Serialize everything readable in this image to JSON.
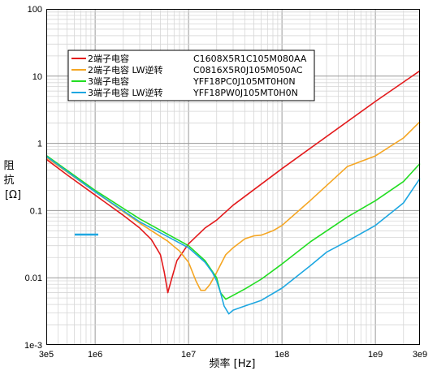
{
  "chart_data": {
    "type": "line",
    "xscale": "log",
    "yscale": "log",
    "xlim": [
      300000,
      3000000000
    ],
    "ylim": [
      0.001,
      100
    ],
    "xlabel": "频率 [Hz]",
    "ylabel": [
      "阻",
      "抗",
      "[Ω]"
    ],
    "x_tick_labels": [
      "3e5",
      "1e6",
      "1e7",
      "1e8",
      "1e9",
      "3e9"
    ],
    "y_tick_labels": [
      "1e-3",
      "0.01",
      "0.1",
      "1",
      "10",
      "100"
    ],
    "grid": true,
    "legend_placement": "upper-left",
    "series": [
      {
        "name": "2端子电容",
        "part": "C1608X5R1C105M080AA",
        "color": "#e31a1c",
        "points": [
          [
            300000,
            0.58
          ],
          [
            500000,
            0.34
          ],
          [
            1000000,
            0.17
          ],
          [
            2000000,
            0.085
          ],
          [
            3000000,
            0.055
          ],
          [
            4000000,
            0.037
          ],
          [
            5000000,
            0.022
          ],
          [
            5500000,
            0.012
          ],
          [
            6000000,
            0.006
          ],
          [
            6500000,
            0.009
          ],
          [
            7500000,
            0.018
          ],
          [
            10000000,
            0.032
          ],
          [
            15000000,
            0.055
          ],
          [
            20000000,
            0.072
          ],
          [
            30000000,
            0.12
          ],
          [
            100000000,
            0.42
          ],
          [
            1000000000,
            4.2
          ],
          [
            3000000000,
            12
          ]
        ]
      },
      {
        "name": "2端子电容 LW逆转",
        "part": "C0816X5R0J105M050AC",
        "color": "#f5a623",
        "points": [
          [
            300000,
            0.62
          ],
          [
            1000000,
            0.19
          ],
          [
            3000000,
            0.065
          ],
          [
            6000000,
            0.035
          ],
          [
            8000000,
            0.025
          ],
          [
            10000000,
            0.017
          ],
          [
            12000000,
            0.009
          ],
          [
            13500000,
            0.0065
          ],
          [
            15000000,
            0.0065
          ],
          [
            17000000,
            0.008
          ],
          [
            20000000,
            0.012
          ],
          [
            25000000,
            0.022
          ],
          [
            30000000,
            0.028
          ],
          [
            40000000,
            0.038
          ],
          [
            50000000,
            0.042
          ],
          [
            60000000,
            0.043
          ],
          [
            80000000,
            0.05
          ],
          [
            100000000,
            0.06
          ],
          [
            200000000,
            0.14
          ],
          [
            500000000,
            0.45
          ],
          [
            1000000000,
            0.65
          ],
          [
            2000000000,
            1.2
          ],
          [
            3000000000,
            2.1
          ]
        ]
      },
      {
        "name": "3端子电容",
        "part": "YFF18PC0J105MT0H0N",
        "color": "#22dd22",
        "points": [
          [
            300000,
            0.66
          ],
          [
            1000000,
            0.2
          ],
          [
            3000000,
            0.075
          ],
          [
            10000000,
            0.03
          ],
          [
            15000000,
            0.018
          ],
          [
            20000000,
            0.01
          ],
          [
            22000000,
            0.006
          ],
          [
            25000000,
            0.0048
          ],
          [
            28000000,
            0.0052
          ],
          [
            40000000,
            0.0068
          ],
          [
            60000000,
            0.0095
          ],
          [
            100000000,
            0.016
          ],
          [
            200000000,
            0.034
          ],
          [
            500000000,
            0.08
          ],
          [
            1000000000,
            0.14
          ],
          [
            2000000000,
            0.27
          ],
          [
            3000000000,
            0.5
          ]
        ]
      },
      {
        "name": "3端子电容 LW逆转",
        "part": "YFF18PW0J105MT0H0N",
        "color": "#1ea7e1",
        "points": [
          [
            300000,
            0.64
          ],
          [
            1000000,
            0.19
          ],
          [
            3000000,
            0.068
          ],
          [
            10000000,
            0.028
          ],
          [
            15000000,
            0.017
          ],
          [
            18000000,
            0.012
          ],
          [
            20000000,
            0.009
          ],
          [
            22000000,
            0.006
          ],
          [
            24000000,
            0.0038
          ],
          [
            27000000,
            0.0029
          ],
          [
            30000000,
            0.0033
          ],
          [
            40000000,
            0.0038
          ],
          [
            60000000,
            0.0046
          ],
          [
            100000000,
            0.007
          ],
          [
            200000000,
            0.015
          ],
          [
            300000000,
            0.024
          ],
          [
            500000000,
            0.035
          ],
          [
            1000000000,
            0.06
          ],
          [
            2000000000,
            0.13
          ],
          [
            3000000000,
            0.3
          ]
        ]
      }
    ]
  }
}
